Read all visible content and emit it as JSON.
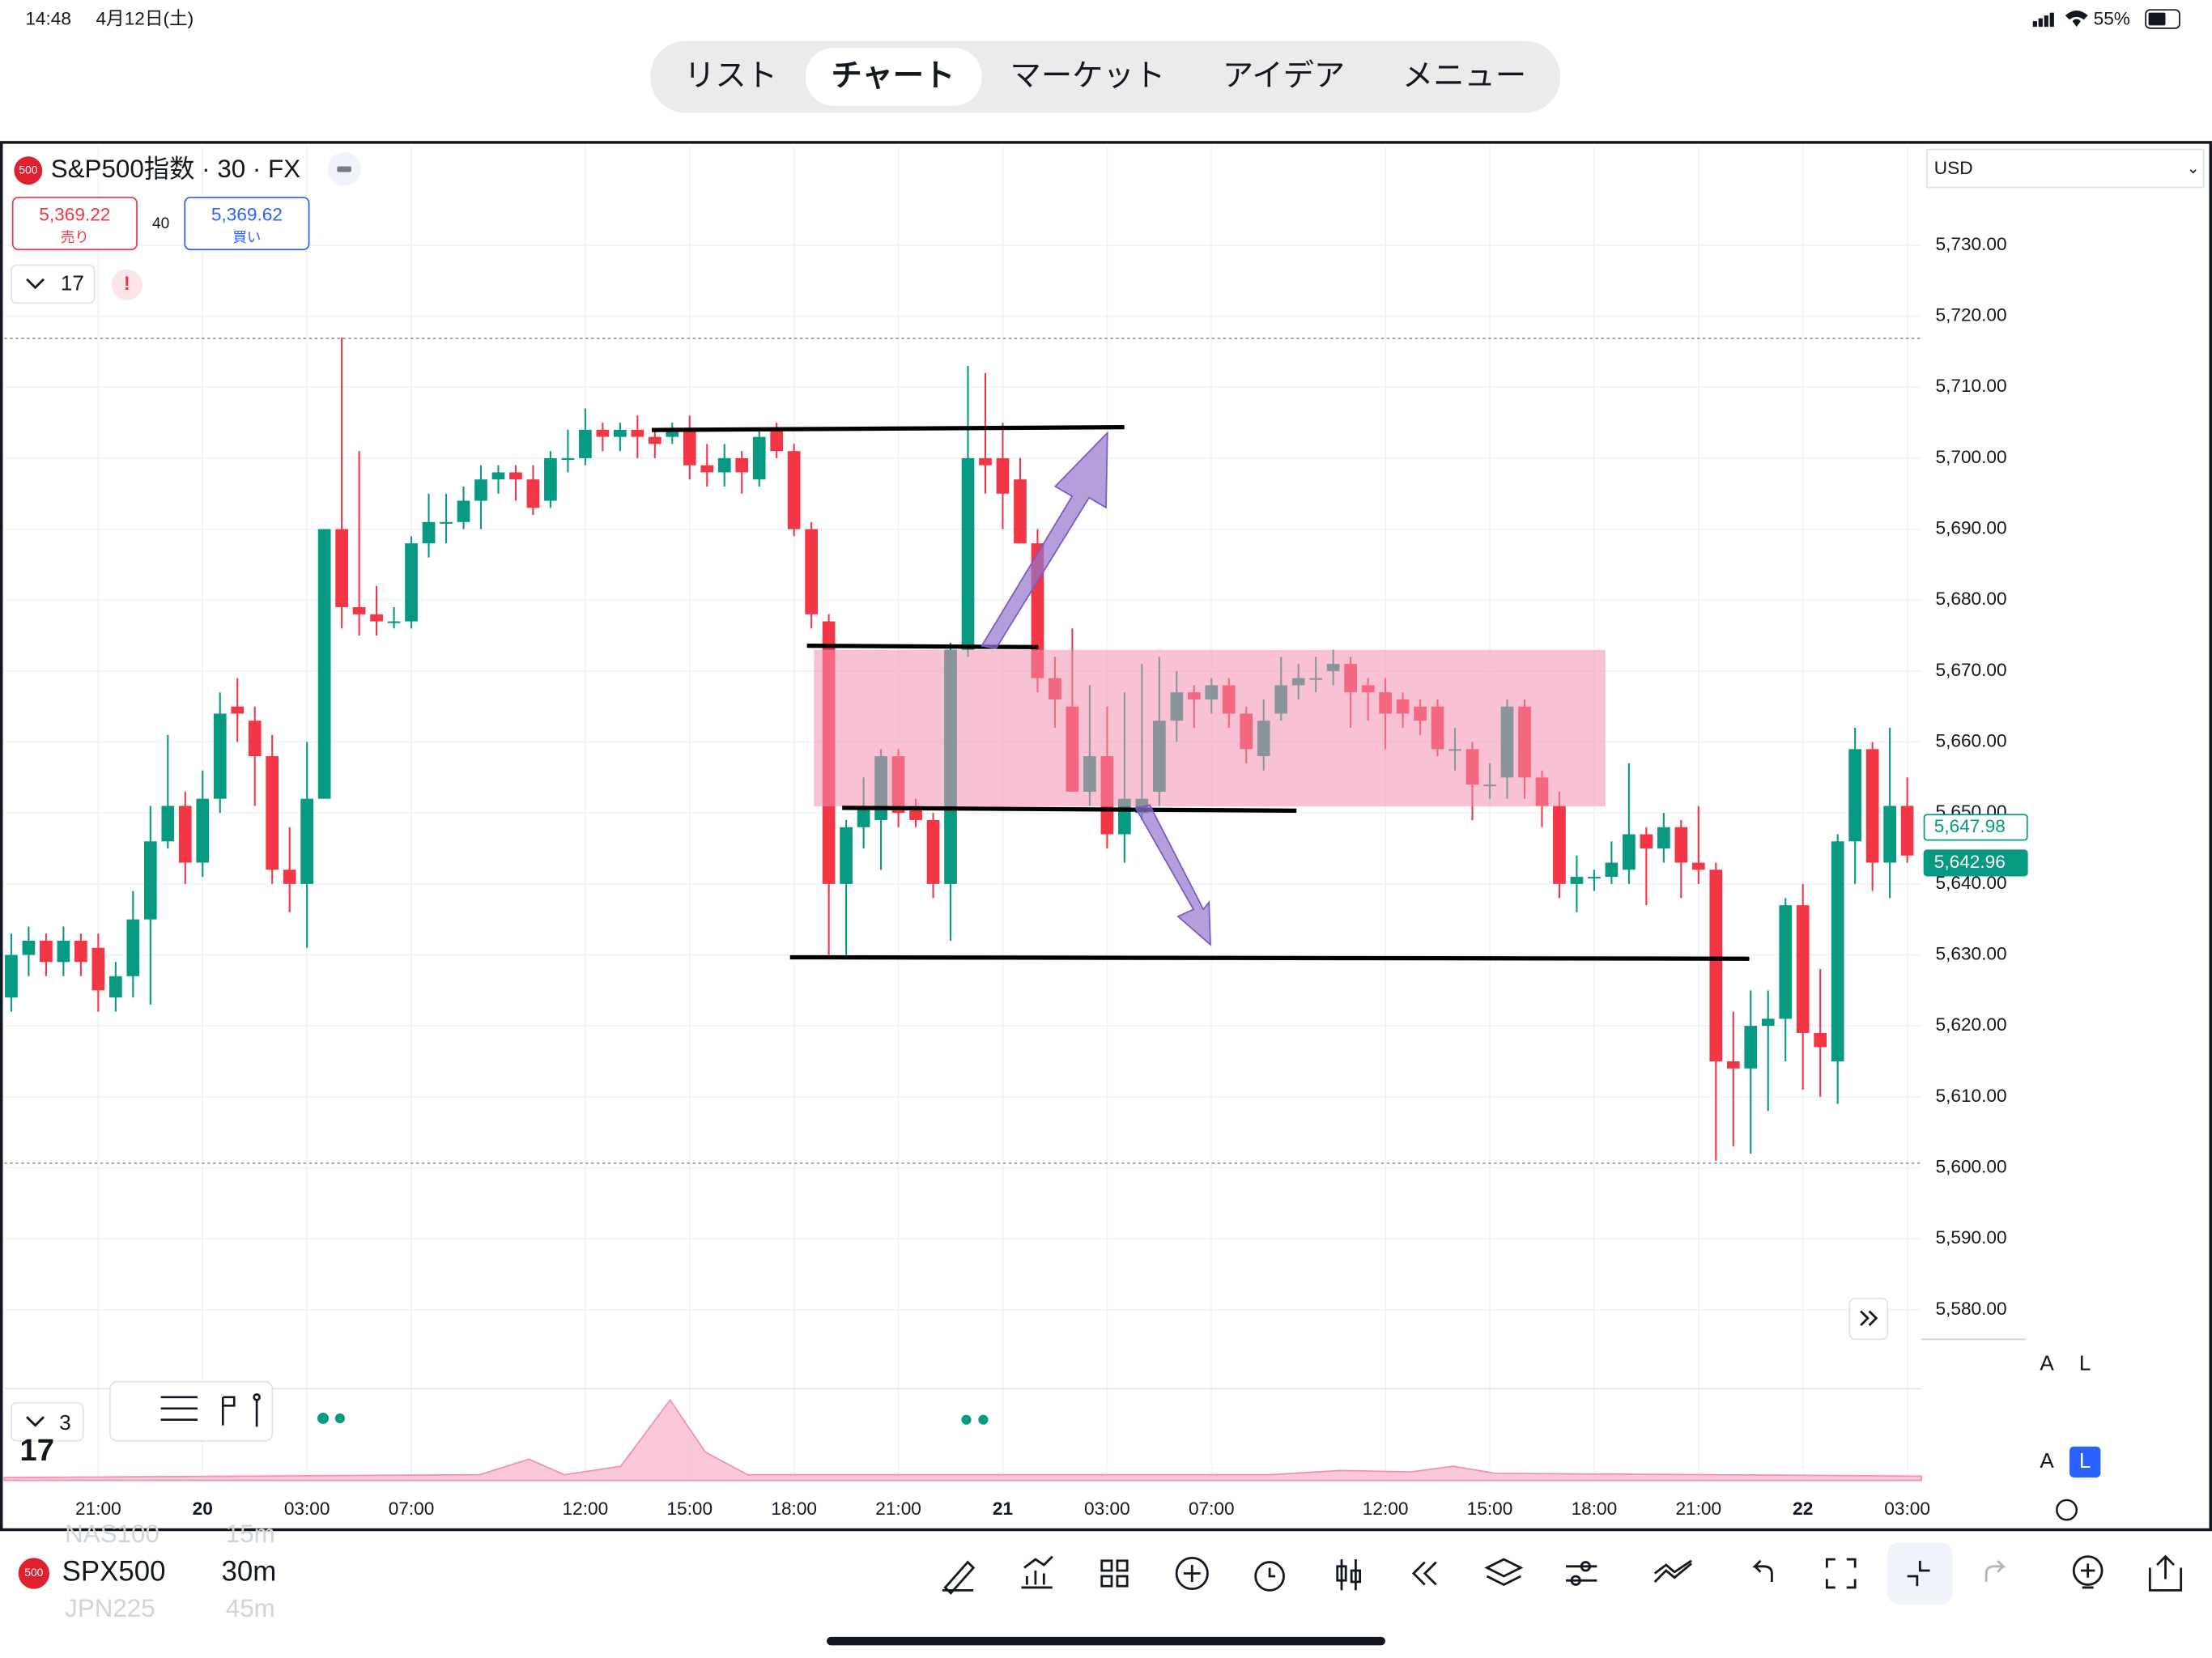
{
  "status_bar": {
    "time": "14:48",
    "date": "4月12日(土)",
    "battery": "55%"
  },
  "tabs": [
    "リスト",
    "チャート",
    "マーケット",
    "アイデア",
    "メニュー"
  ],
  "symbol": {
    "badge": "500",
    "title": "S&P500指数 · 30 · FX",
    "sell": {
      "price": "5,369.22",
      "label": "売り"
    },
    "spread": "40",
    "buy": {
      "price": "5,369.62",
      "label": "買い"
    },
    "indicator_count": "17",
    "alert": "!"
  },
  "currency": "USD",
  "scale_buttons": [
    "A",
    "L"
  ],
  "pane": {
    "count": "3"
  },
  "bottom_bar": {
    "badge": "500",
    "symbol": "SPX500",
    "interval": "30m",
    "ghost_above": {
      "symbol": "NAS100",
      "interval": "15m"
    },
    "ghost_below": {
      "symbol": "JPN225",
      "interval": "45m"
    }
  },
  "chart_data": {
    "type": "candlestick",
    "up_color": "#089981",
    "down_color": "#f23645",
    "categories": [
      null,
      null,
      null,
      null,
      null,
      "21:00",
      null,
      null,
      null,
      null,
      null,
      "20",
      null,
      null,
      null,
      null,
      null,
      "03:00",
      null,
      null,
      null,
      null,
      null,
      "07:00",
      null,
      null,
      null,
      null,
      null,
      null,
      null,
      null,
      null,
      "12:00",
      null,
      null,
      null,
      null,
      null,
      "15:00",
      null,
      null,
      null,
      null,
      null,
      "18:00",
      null,
      null,
      null,
      null,
      null,
      "21:00",
      null,
      null,
      null,
      null,
      null,
      "21",
      null,
      null,
      null,
      null,
      null,
      "03:00",
      null,
      null,
      null,
      null,
      null,
      "07:00",
      null,
      null,
      null,
      null,
      null,
      null,
      null,
      null,
      null,
      "12:00",
      null,
      null,
      null,
      null,
      null,
      "15:00",
      null,
      null,
      null,
      null,
      null,
      "18:00",
      null,
      null,
      null,
      null,
      null,
      "21:00",
      null,
      null,
      null,
      null,
      null,
      "22",
      null,
      null,
      null,
      null,
      null,
      "03:00"
    ],
    "open": [
      5624,
      5630,
      5632,
      5629,
      5632,
      5631,
      5624,
      5627,
      5635,
      5646,
      5651,
      5643,
      5652,
      5665,
      5663,
      5658,
      5642,
      5640,
      5652,
      5690,
      5679,
      5678,
      5677,
      5677,
      5688,
      5691,
      5691,
      5694,
      5697,
      5698,
      5697,
      5694,
      5700,
      5700,
      5704,
      5703,
      5704,
      5703,
      5703,
      5704,
      5699,
      5698,
      5700,
      5697,
      5704,
      5701,
      5690,
      5677,
      5640,
      5648,
      5649,
      5658,
      5651,
      5649,
      5640,
      5673,
      5700,
      5700,
      5697,
      5688,
      5669,
      5665,
      5653,
      5658,
      5647,
      5650,
      5653,
      5663,
      5667,
      5666,
      5668,
      5664,
      5658,
      5664,
      5668,
      5669,
      5670,
      5671,
      5668,
      5667,
      5666,
      5665,
      5665,
      5659,
      5659,
      5654,
      5655,
      5665,
      5655,
      5651,
      5640,
      5641,
      5641,
      5642,
      5647,
      5645,
      5648,
      5643,
      5642,
      5615,
      5614,
      5620,
      5621,
      5637,
      5619,
      5615,
      5646,
      5659,
      5643,
      5651
    ],
    "high": [
      5633,
      5634,
      5633,
      5634,
      5633,
      5633,
      5629,
      5639,
      5651,
      5661,
      5653,
      5656,
      5667,
      5669,
      5665,
      5661,
      5648,
      5660,
      5690,
      5717,
      5701,
      5682,
      5679,
      5689,
      5695,
      5695,
      5696,
      5699,
      5699,
      5699,
      5699,
      5701,
      5704,
      5707,
      5705,
      5705,
      5706,
      5704,
      5705,
      5706,
      5702,
      5702,
      5701,
      5704,
      5705,
      5702,
      5691,
      5678,
      5649,
      5655,
      5659,
      5659,
      5652,
      5650,
      5674,
      5713,
      5712,
      5705,
      5700,
      5690,
      5672,
      5676,
      5668,
      5665,
      5667,
      5671,
      5672,
      5670,
      5668,
      5669,
      5669,
      5665,
      5666,
      5672,
      5671,
      5672,
      5673,
      5672,
      5669,
      5669,
      5667,
      5666,
      5666,
      5662,
      5660,
      5657,
      5666,
      5666,
      5656,
      5653,
      5644,
      5642,
      5646,
      5657,
      5648,
      5650,
      5649,
      5651,
      5643,
      5622,
      5625,
      5625,
      5638,
      5640,
      5628,
      5647,
      5662,
      5660,
      5662,
      5655
    ],
    "low": [
      5622,
      5627,
      5627,
      5627,
      5627,
      5622,
      5622,
      5624,
      5623,
      5645,
      5640,
      5641,
      5650,
      5660,
      5651,
      5640,
      5636,
      5631,
      5653,
      5676,
      5675,
      5675,
      5676,
      5676,
      5686,
      5688,
      5690,
      5690,
      5695,
      5694,
      5692,
      5693,
      5698,
      5699,
      5701,
      5701,
      5700,
      5700,
      5702,
      5697,
      5696,
      5696,
      5695,
      5696,
      5700,
      5689,
      5676,
      5630,
      5630,
      5645,
      5642,
      5648,
      5648,
      5638,
      5632,
      5672,
      5695,
      5690,
      5688,
      5667,
      5662,
      5653,
      5651,
      5645,
      5643,
      5649,
      5651,
      5660,
      5662,
      5664,
      5662,
      5657,
      5656,
      5663,
      5666,
      5667,
      5668,
      5662,
      5663,
      5659,
      5662,
      5661,
      5658,
      5656,
      5649,
      5652,
      5652,
      5652,
      5648,
      5638,
      5636,
      5639,
      5640,
      5640,
      5637,
      5643,
      5638,
      5640,
      5601,
      5603,
      5602,
      5608,
      5615,
      5611,
      5610,
      5609,
      5640,
      5639,
      5638,
      5643
    ],
    "close": [
      5630,
      5632,
      5629,
      5632,
      5629,
      5625,
      5627,
      5635,
      5646,
      5651,
      5643,
      5652,
      5664,
      5664,
      5658,
      5642,
      5640,
      5652,
      5690,
      5679,
      5678,
      5677,
      5677,
      5688,
      5691,
      5691,
      5694,
      5697,
      5698,
      5697,
      5693,
      5700,
      5700,
      5704,
      5703,
      5704,
      5703,
      5702,
      5704,
      5699,
      5698,
      5700,
      5698,
      5703,
      5701,
      5690,
      5678,
      5640,
      5648,
      5651,
      5658,
      5650,
      5649,
      5640,
      5673,
      5700,
      5699,
      5695,
      5688,
      5669,
      5666,
      5653,
      5658,
      5647,
      5652,
      5652,
      5663,
      5667,
      5666,
      5668,
      5664,
      5659,
      5663,
      5668,
      5669,
      5669,
      5671,
      5667,
      5667,
      5664,
      5664,
      5663,
      5659,
      5659,
      5654,
      5654,
      5665,
      5655,
      5651,
      5640,
      5641,
      5641,
      5643,
      5647,
      5645,
      5648,
      5643,
      5642,
      5615,
      5614,
      5620,
      5621,
      5637,
      5619,
      5617,
      5646,
      5659,
      5643,
      5651,
      5644
    ],
    "ylim": [
      5576,
      5744
    ],
    "yticks": [
      {
        "value": 5580,
        "label": "5,580.00"
      },
      {
        "value": 5590,
        "label": "5,590.00"
      },
      {
        "value": 5600,
        "label": "5,600.00"
      },
      {
        "value": 5610,
        "label": "5,610.00"
      },
      {
        "value": 5620,
        "label": "5,620.00"
      },
      {
        "value": 5630,
        "label": "5,630.00"
      },
      {
        "value": 5640,
        "label": "5,640.00"
      },
      {
        "value": 5650,
        "label": "5,650.00"
      },
      {
        "value": 5660,
        "label": "5,660.00"
      },
      {
        "value": 5670,
        "label": "5,670.00"
      },
      {
        "value": 5680,
        "label": "5,680.00"
      },
      {
        "value": 5690,
        "label": "5,690.00"
      },
      {
        "value": 5700,
        "label": "5,700.00"
      },
      {
        "value": 5710,
        "label": "5,710.00"
      },
      {
        "value": 5720,
        "label": "5,720.00"
      },
      {
        "value": 5730,
        "label": "5,730.00"
      }
    ],
    "price_labels": [
      {
        "value": 5647.98,
        "label": "5,647.98"
      },
      {
        "value": 5642.96,
        "label": "5,642.96"
      }
    ],
    "grid": true
  }
}
